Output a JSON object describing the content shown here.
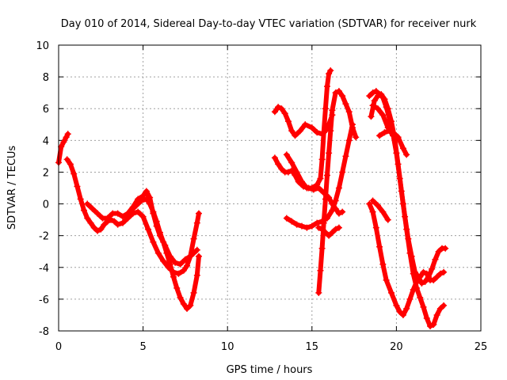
{
  "chart_data": {
    "type": "scatter",
    "title": "Day 010 of 2014, Sidereal Day-to-day VTEC variation (SDTVAR) for receiver nurk",
    "xlabel": "GPS time / hours",
    "ylabel": "SDTVAR / TECUs",
    "xlim": [
      0,
      25
    ],
    "ylim": [
      -8,
      10
    ],
    "xticks": [
      0,
      5,
      10,
      15,
      20,
      25
    ],
    "yticks": [
      -8,
      -6,
      -4,
      -2,
      0,
      2,
      4,
      6,
      8,
      10
    ],
    "grid": true,
    "marker": "+",
    "color": "#ff0000",
    "series": [
      {
        "x": [
          0.0,
          0.15,
          0.3,
          0.45,
          0.55
        ],
        "y": [
          2.6,
          3.6,
          3.9,
          4.2,
          4.4
        ]
      },
      {
        "x": [
          0.5,
          0.7,
          0.9,
          1.1,
          1.3,
          1.5,
          1.7,
          1.9,
          2.1,
          2.3,
          2.5,
          2.7,
          2.9,
          3.1,
          3.3,
          3.5,
          3.8,
          4.1,
          4.4,
          4.7,
          5.0,
          5.3,
          5.6,
          5.9,
          6.2,
          6.5,
          6.8,
          7.1,
          7.4,
          7.6,
          7.8,
          8.0,
          8.2,
          8.3
        ],
        "y": [
          2.8,
          2.5,
          1.9,
          1.1,
          0.3,
          -0.4,
          -0.9,
          -1.2,
          -1.5,
          -1.7,
          -1.6,
          -1.3,
          -1.1,
          -1.0,
          -1.1,
          -1.3,
          -1.2,
          -0.9,
          -0.6,
          -0.5,
          -0.8,
          -1.6,
          -2.4,
          -3.1,
          -3.6,
          -4.0,
          -4.3,
          -4.4,
          -4.2,
          -3.9,
          -3.3,
          -2.2,
          -1.2,
          -0.6
        ]
      },
      {
        "x": [
          1.7,
          2.0,
          2.3,
          2.6,
          2.9,
          3.2,
          3.5,
          3.8,
          4.1,
          4.4,
          4.7,
          5.0,
          5.2,
          5.4,
          5.6,
          5.8,
          6.0,
          6.3,
          6.6,
          6.9,
          7.2,
          7.5,
          7.8,
          8.0,
          8.2
        ],
        "y": [
          0.0,
          -0.3,
          -0.6,
          -0.9,
          -0.9,
          -0.6,
          -0.6,
          -0.8,
          -0.6,
          -0.2,
          0.3,
          0.5,
          0.8,
          0.4,
          -0.6,
          -1.4,
          -2.0,
          -2.6,
          -3.3,
          -3.7,
          -3.8,
          -3.5,
          -3.3,
          -3.1,
          -2.9
        ]
      },
      {
        "x": [
          4.3,
          4.6,
          4.9,
          5.2,
          5.4,
          5.6,
          5.8,
          6.0,
          6.2,
          6.4,
          6.6,
          6.8,
          7.0,
          7.2,
          7.4,
          7.6,
          7.8,
          8.0,
          8.2,
          8.3
        ],
        "y": [
          -0.4,
          -0.1,
          0.2,
          0.3,
          0.0,
          -0.5,
          -1.1,
          -1.8,
          -2.4,
          -3.1,
          -3.8,
          -4.6,
          -5.3,
          -5.9,
          -6.3,
          -6.6,
          -6.4,
          -5.6,
          -4.5,
          -3.3
        ]
      },
      {
        "x": [
          12.8,
          13.0,
          13.2,
          13.4,
          13.6,
          13.8,
          14.0,
          14.2,
          14.5,
          14.8,
          15.1,
          15.4,
          15.7,
          16.0,
          16.2,
          16.4,
          16.6,
          16.8
        ],
        "y": [
          2.9,
          2.5,
          2.2,
          2.0,
          2.0,
          2.1,
          1.8,
          1.4,
          1.1,
          1.0,
          0.9,
          1.0,
          0.7,
          0.4,
          0.0,
          -0.3,
          -0.6,
          -0.5
        ]
      },
      {
        "x": [
          12.8,
          13.0,
          13.2,
          13.4,
          13.6,
          13.8,
          14.0,
          14.3,
          14.6,
          15.0,
          15.3,
          15.6,
          15.8,
          16.0,
          16.2
        ],
        "y": [
          5.8,
          6.1,
          6.0,
          5.7,
          5.2,
          4.6,
          4.3,
          4.6,
          5.0,
          4.8,
          4.5,
          4.4,
          4.6,
          5.0,
          5.6
        ]
      },
      {
        "x": [
          13.5,
          13.8,
          14.1,
          14.4,
          14.7,
          15.0,
          15.3,
          15.5,
          15.6,
          15.7,
          15.8,
          15.9,
          16.0,
          16.1
        ],
        "y": [
          3.1,
          2.6,
          2.0,
          1.4,
          1.0,
          1.0,
          1.2,
          1.6,
          2.8,
          4.5,
          6.0,
          7.4,
          8.2,
          8.4
        ]
      },
      {
        "x": [
          15.4,
          15.5,
          15.6,
          15.7,
          15.8,
          15.9,
          16.0,
          16.1,
          16.2,
          16.4,
          16.6,
          16.8,
          17.0,
          17.2,
          17.4,
          17.6
        ],
        "y": [
          -5.6,
          -4.2,
          -2.8,
          -1.2,
          0.3,
          1.8,
          3.2,
          4.6,
          5.9,
          7.0,
          7.1,
          6.8,
          6.3,
          5.8,
          4.8,
          4.2
        ]
      },
      {
        "x": [
          13.5,
          13.8,
          14.1,
          14.4,
          14.7,
          15.0,
          15.3,
          15.6,
          15.9,
          16.2,
          16.4,
          16.6,
          16.8,
          17.0,
          17.2,
          17.4
        ],
        "y": [
          -0.9,
          -1.1,
          -1.3,
          -1.4,
          -1.5,
          -1.4,
          -1.2,
          -1.1,
          -0.9,
          -0.4,
          0.2,
          1.0,
          2.0,
          3.0,
          4.0,
          5.0
        ]
      },
      {
        "x": [
          15.4,
          15.6,
          15.8,
          16.0,
          16.2,
          16.4,
          16.6
        ],
        "y": [
          -1.5,
          -1.6,
          -1.8,
          -2.0,
          -1.8,
          -1.6,
          -1.5
        ]
      },
      {
        "x": [
          18.4,
          18.6,
          18.8,
          19.0,
          19.2,
          19.4,
          19.6,
          19.8,
          20.0,
          20.2,
          20.4,
          20.6,
          20.8,
          21.0,
          21.2,
          21.4,
          21.6,
          21.8,
          22.0,
          22.2,
          22.4,
          22.6,
          22.8
        ],
        "y": [
          6.8,
          7.0,
          7.1,
          6.9,
          6.7,
          6.1,
          5.3,
          4.4,
          3.2,
          1.6,
          0.0,
          -1.6,
          -3.1,
          -4.4,
          -5.3,
          -5.9,
          -6.5,
          -7.2,
          -7.7,
          -7.6,
          -7.0,
          -6.6,
          -6.4
        ]
      },
      {
        "x": [
          18.4,
          18.6,
          18.8,
          19.0,
          19.2,
          19.4,
          19.7,
          20.0,
          20.2,
          20.4,
          20.6,
          20.8,
          21.0,
          21.2,
          21.4,
          21.6,
          21.8,
          22.0,
          22.2,
          22.4,
          22.6,
          22.8
        ],
        "y": [
          0.0,
          -0.5,
          -1.5,
          -2.7,
          -3.8,
          -4.8,
          -5.6,
          -6.4,
          -6.8,
          -7.0,
          -6.6,
          -6.0,
          -5.4,
          -4.9,
          -4.6,
          -4.3,
          -4.4,
          -4.8,
          -4.8,
          -4.6,
          -4.4,
          -4.3
        ]
      },
      {
        "x": [
          18.6,
          18.9,
          19.2,
          19.5,
          19.8,
          20.1,
          20.4,
          20.6
        ],
        "y": [
          6.2,
          6.0,
          5.6,
          4.8,
          4.3,
          4.2,
          3.5,
          3.1
        ]
      },
      {
        "x": [
          18.5,
          18.7,
          18.9,
          19.1,
          19.3,
          19.5,
          19.7,
          19.9,
          20.1,
          20.3,
          20.5,
          20.7,
          20.9,
          21.1,
          21.3,
          21.5,
          21.7,
          21.9,
          22.1,
          22.3,
          22.5,
          22.7,
          22.9
        ],
        "y": [
          5.5,
          6.5,
          6.8,
          6.9,
          6.6,
          6.0,
          5.2,
          4.1,
          2.5,
          0.8,
          -0.8,
          -2.2,
          -3.3,
          -4.3,
          -4.6,
          -5.0,
          -4.9,
          -4.6,
          -4.1,
          -3.5,
          -3.0,
          -2.8,
          -2.8
        ]
      },
      {
        "x": [
          19.0,
          19.3,
          19.6,
          19.9,
          20.1
        ],
        "y": [
          4.3,
          4.5,
          4.6,
          4.4,
          4.2
        ]
      },
      {
        "x": [
          18.6,
          18.9,
          19.2,
          19.5
        ],
        "y": [
          0.2,
          -0.1,
          -0.5,
          -1.0
        ]
      }
    ]
  }
}
